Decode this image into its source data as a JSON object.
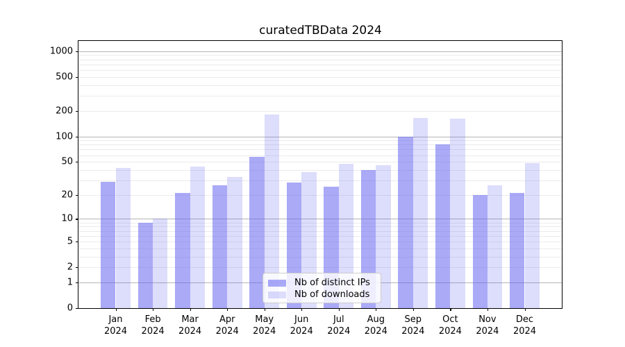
{
  "title": "curatedTBData 2024",
  "chart_data": {
    "type": "bar",
    "title": "curatedTBData 2024",
    "xlabel": "",
    "ylabel": "",
    "y_scale": "symlog (log1p-like), decades 1-10-100-1000, linear 0-1",
    "ylim": [
      0,
      1320
    ],
    "grid": "horizontal major (1,10,100,1000) + minor (2-9 per decade)",
    "legend_position": "lower center inside plot",
    "categories": [
      "Jan",
      "Feb",
      "Mar",
      "Apr",
      "May",
      "Jun",
      "Jul",
      "Aug",
      "Sep",
      "Oct",
      "Nov",
      "Dec"
    ],
    "x_tick_second_line": "2024",
    "series": [
      {
        "name": "Nb of distinct IPs",
        "color": "rgba(100,100,240,0.55)",
        "values": [
          29,
          9,
          21,
          26,
          57,
          28,
          25,
          40,
          100,
          80,
          20,
          21
        ]
      },
      {
        "name": "Nb of downloads",
        "color": "rgba(100,100,240,0.22)",
        "values": [
          42,
          10,
          44,
          33,
          180,
          38,
          47,
          46,
          165,
          163,
          26,
          48
        ]
      }
    ],
    "y_ticks": [
      {
        "value": 1000,
        "label": "1000"
      },
      {
        "value": 500,
        "label": "500"
      },
      {
        "value": 200,
        "label": "200"
      },
      {
        "value": 100,
        "label": "100"
      },
      {
        "value": 50,
        "label": "50"
      },
      {
        "value": 20,
        "label": "20"
      },
      {
        "value": 10,
        "label": "10"
      },
      {
        "value": 5,
        "label": "5"
      },
      {
        "value": 2,
        "label": "2"
      },
      {
        "value": 1,
        "label": "1"
      },
      {
        "value": 0,
        "label": "0"
      }
    ]
  },
  "legend": {
    "items": [
      {
        "label": "Nb of distinct IPs",
        "color": "rgba(100,100,240,0.55)"
      },
      {
        "label": "Nb of downloads",
        "color": "rgba(100,100,240,0.22)"
      }
    ]
  },
  "colors": {
    "major_grid": "#b4b4b4",
    "minor_grid": "#ebebeb",
    "axis": "#000000",
    "legend_border": "#cccccc"
  }
}
